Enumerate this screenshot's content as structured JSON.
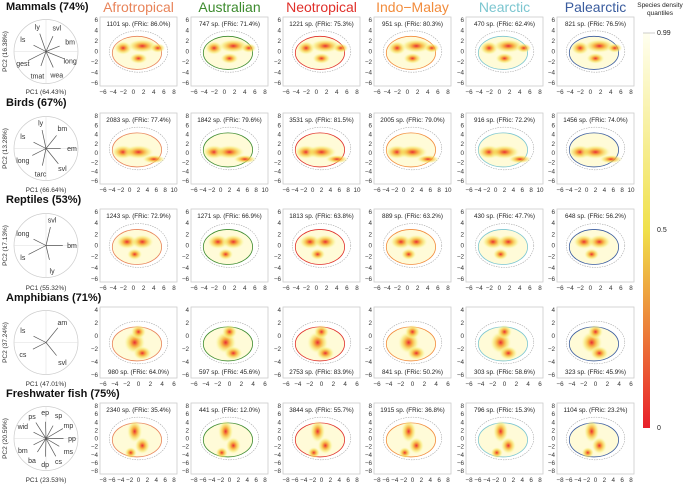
{
  "colorbar": {
    "title": "Species density quantiles",
    "ticks": [
      "0.99",
      "0.5",
      "0"
    ],
    "colors": [
      "#fffff0",
      "#f0e04a",
      "#e8202a"
    ]
  },
  "regions": [
    {
      "name": "Afrotropical",
      "color": "#e8845a"
    },
    {
      "name": "Australian",
      "color": "#3d8b2e"
    },
    {
      "name": "Neotropical",
      "color": "#e0302a"
    },
    {
      "name": "Indo−Malay",
      "color": "#f28c3c"
    },
    {
      "name": "Nearctic",
      "color": "#7cc6d0"
    },
    {
      "name": "Palearctic",
      "color": "#3a5c9e"
    }
  ],
  "chart_data": {
    "type": "heatmap",
    "rows": [
      {
        "title": "Mammals (74%)",
        "pc1": "PC1 (64.43%)",
        "pc2": "PC2 (16.38%)",
        "vectors": [
          "ls",
          "ly",
          "svl",
          "bm",
          "long",
          "wea",
          "tmat",
          "gest"
        ],
        "xlim": [
          -6,
          8
        ],
        "xticks": [
          -6,
          -4,
          -2,
          0,
          2,
          4,
          6,
          8
        ],
        "ylim": [
          -6,
          6
        ],
        "yticks": [
          -6,
          -4,
          -2,
          0,
          2,
          4,
          6
        ],
        "label_pos": "top",
        "panels": [
          "1101 sp. (FRic: 86.0%)",
          "747 sp. (FRic: 71.4%)",
          "1221 sp. (FRic: 75.3%)",
          "951 sp. (FRic: 80.3%)",
          "470 sp. (FRic: 62.4%)",
          "821 sp. (FRic: 76.5%)"
        ]
      },
      {
        "title": "Birds (67%)",
        "pc1": "PC1 (66.64%)",
        "pc2": "PC2 (13.28%)",
        "vectors": [
          "ls",
          "ly",
          "bm",
          "em",
          "svl",
          "tarc",
          "long"
        ],
        "xlim": [
          -6,
          10
        ],
        "xticks": [
          -6,
          -4,
          -2,
          0,
          2,
          4,
          6,
          8,
          10
        ],
        "ylim": [
          -6,
          8
        ],
        "yticks": [
          -6,
          -4,
          -2,
          0,
          2,
          4,
          6,
          8
        ],
        "label_pos": "top",
        "panels": [
          "2083 sp. (FRic: 77.4%)",
          "1842 sp. (FRic: 79.6%)",
          "3531 sp. (FRic: 81.5%)",
          "2005 sp. (FRic: 79.0%)",
          "916 sp. (FRic: 72.2%)",
          "1456 sp. (FRic: 74.0%)"
        ]
      },
      {
        "title": "Reptiles (53%)",
        "pc1": "PC1 (55.32%)",
        "pc2": "PC2 (17.13%)",
        "vectors": [
          "long",
          "svl",
          "bm",
          "ly",
          "ls"
        ],
        "xlim": [
          -6,
          8
        ],
        "xticks": [
          -6,
          -4,
          -2,
          0,
          2,
          4,
          6,
          8
        ],
        "ylim": [
          -6,
          6
        ],
        "yticks": [
          -6,
          -4,
          -2,
          0,
          2,
          4,
          6
        ],
        "label_pos": "top",
        "panels": [
          "1243 sp. (FRic: 72.9%)",
          "1271 sp. (FRic: 66.9%)",
          "1813 sp. (FRic: 63.8%)",
          "889 sp. (FRic: 63.2%)",
          "430 sp. (FRic: 47.7%)",
          "648 sp. (FRic: 56.2%)"
        ]
      },
      {
        "title": "Amphibians (71%)",
        "pc1": "PC1 (47.01%)",
        "pc2": "PC2 (37.24%)",
        "vectors": [
          "ls",
          "am",
          "svl",
          "cs"
        ],
        "xlim": [
          -6,
          6
        ],
        "xticks": [
          -6,
          -4,
          -2,
          0,
          2,
          4,
          6
        ],
        "ylim": [
          -6,
          4
        ],
        "yticks": [
          -6,
          -4,
          -2,
          0,
          2,
          4
        ],
        "label_pos": "bottom",
        "panels": [
          "980 sp. (FRic: 64.0%)",
          "597 sp. (FRic: 45.6%)",
          "2753 sp. (FRic: 83.9%)",
          "841 sp. (FRic: 50.2%)",
          "303 sp. (FRic: 58.6%)",
          "323 sp. (FRic: 45.9%)"
        ]
      },
      {
        "title": "Freshwater fish (75%)",
        "pc1": "PC1 (23.53%)",
        "pc2": "PC2 (20.59%)",
        "vectors": [
          "wid",
          "ps",
          "ep",
          "sp",
          "mp",
          "pp",
          "ms",
          "cs",
          "dp",
          "ba",
          "bm"
        ],
        "xlim": [
          -8,
          8
        ],
        "xticks": [
          -8,
          -6,
          -4,
          -2,
          0,
          2,
          4,
          6,
          8
        ],
        "ylim": [
          -8,
          8
        ],
        "yticks": [
          -8,
          -6,
          -4,
          -2,
          0,
          2,
          4,
          6,
          8
        ],
        "label_pos": "top",
        "panels": [
          "2340 sp. (FRic: 35.4%)",
          "441 sp. (FRic: 12.0%)",
          "3844 sp. (FRic: 55.7%)",
          "1915 sp. (FRic: 36.8%)",
          "796 sp. (FRic: 15.3%)",
          "1104 sp. (FRic: 23.2%)"
        ]
      }
    ]
  }
}
